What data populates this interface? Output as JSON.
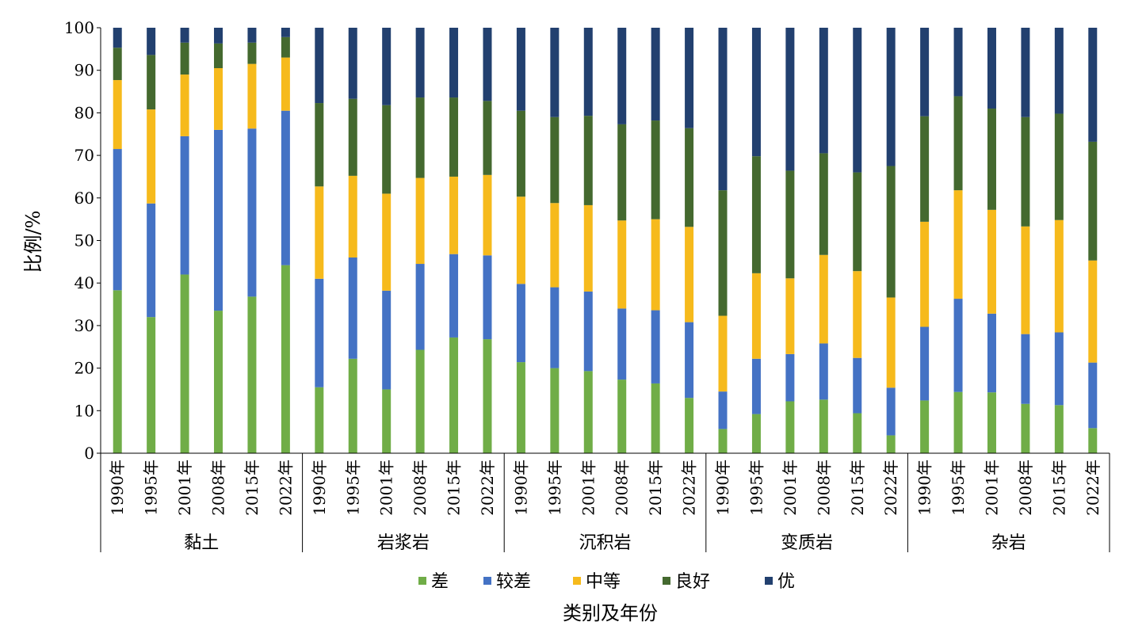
{
  "chart_data": {
    "type": "bar",
    "stacked": true,
    "title": "",
    "xlabel": "类别及年份",
    "ylabel": "比例/%",
    "ylim": [
      0,
      100
    ],
    "yticks": [
      0,
      10,
      20,
      30,
      40,
      50,
      60,
      70,
      80,
      90,
      100
    ],
    "grid": false,
    "legend_position": "bottom",
    "groups": [
      "黏土",
      "岩浆岩",
      "沉积岩",
      "变质岩",
      "杂岩"
    ],
    "years": [
      "1990年",
      "1995年",
      "2001年",
      "2008年",
      "2015年",
      "2022年"
    ],
    "series": [
      {
        "name": "差",
        "color": "#70AD47",
        "values": [
          38.3,
          32,
          42,
          33.5,
          36.8,
          44.2,
          15.5,
          22.2,
          15,
          24.3,
          27.2,
          26.8,
          21.4,
          20,
          19.3,
          17.3,
          16.4,
          13,
          5.7,
          9.2,
          12.2,
          12.6,
          9.4,
          4.2,
          12.4,
          14.4,
          14.3,
          11.6,
          11.3,
          5.9
        ]
      },
      {
        "name": "较差",
        "color": "#4472C4",
        "values": [
          33.2,
          26.7,
          32.5,
          42.5,
          39.5,
          36.3,
          25.5,
          23.8,
          23.2,
          20.2,
          19.6,
          19.7,
          18.4,
          19,
          18.7,
          16.7,
          17.2,
          17.8,
          8.8,
          13,
          11.1,
          13.2,
          13,
          11.2,
          17.3,
          21.9,
          18.5,
          16.4,
          17.1,
          15.4
        ]
      },
      {
        "name": "中等",
        "color": "#F6BA1C",
        "values": [
          16.2,
          22.1,
          14.5,
          14.5,
          15.2,
          12.5,
          21.7,
          19.2,
          22.8,
          20.2,
          18.2,
          18.9,
          20.5,
          19.8,
          20.3,
          20.7,
          21.4,
          22.4,
          17.8,
          20.1,
          17.8,
          20.8,
          20.4,
          21.2,
          24.7,
          25.5,
          24.4,
          25.3,
          26.4,
          24
        ]
      },
      {
        "name": "良好",
        "color": "#44692F",
        "values": [
          7.6,
          12.8,
          7.5,
          5.8,
          5,
          4.8,
          19.6,
          18.1,
          20.8,
          18.9,
          18.6,
          17.4,
          20.2,
          20.2,
          21,
          22.6,
          23.2,
          23.2,
          29.5,
          27.5,
          25.3,
          23.9,
          23.2,
          30.9,
          24.8,
          22.1,
          23.8,
          25.7,
          25,
          27.9
        ]
      },
      {
        "name": "优",
        "color": "#22406F",
        "values": [
          4.7,
          6.4,
          3.5,
          3.7,
          3.5,
          2.2,
          17.7,
          16.7,
          18.2,
          16.4,
          16.4,
          17.2,
          19.5,
          21,
          20.7,
          22.7,
          21.8,
          23.6,
          38.2,
          30.2,
          33.6,
          29.5,
          34,
          32.5,
          20.8,
          16.1,
          19,
          21,
          20.2,
          26.8
        ]
      }
    ]
  }
}
